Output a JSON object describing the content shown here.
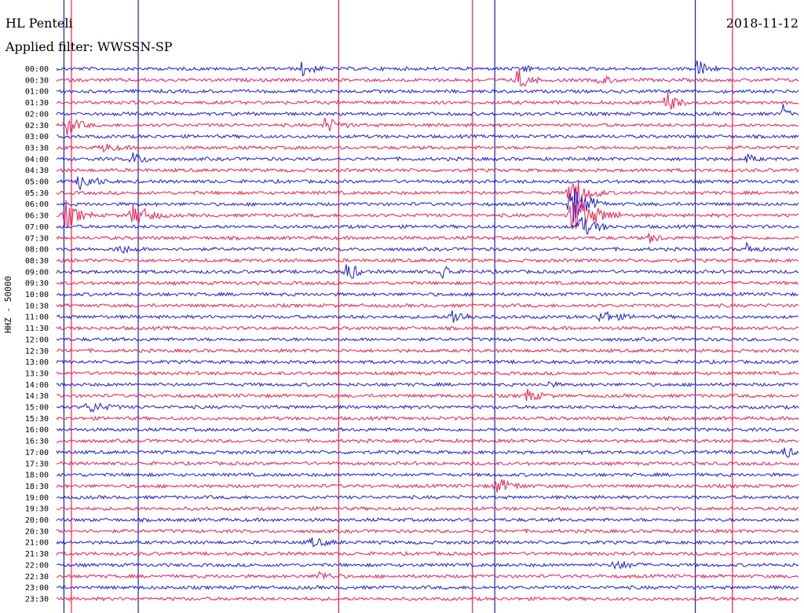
{
  "header": {
    "station": "HL Penteli",
    "filter": "Applied filter: WWSSN-SP",
    "date": "2018-11-12"
  },
  "channel_label": "HHZ - 50000",
  "colors": {
    "trace_a": "#1a1ae6",
    "trace_b": "#ff1a4d",
    "background": "#ffffff"
  },
  "chart_data": {
    "type": "line",
    "title": "HL Penteli",
    "rows": [
      "00:00",
      "00:30",
      "01:00",
      "01:30",
      "02:00",
      "02:30",
      "03:00",
      "03:30",
      "04:00",
      "04:30",
      "05:00",
      "05:30",
      "06:00",
      "06:30",
      "07:00",
      "07:30",
      "08:00",
      "08:30",
      "09:00",
      "09:30",
      "10:00",
      "10:30",
      "11:00",
      "11:30",
      "12:00",
      "12:30",
      "13:00",
      "13:30",
      "14:00",
      "14:30",
      "15:00",
      "15:30",
      "16:00",
      "16:30",
      "17:00",
      "17:30",
      "18:00",
      "18:30",
      "19:00",
      "19:30",
      "20:00",
      "20:30",
      "21:00",
      "21:30",
      "22:00",
      "22:30",
      "23:00",
      "23:30"
    ],
    "trace_colors": [
      "#1a1ae6",
      "#ff1a4d"
    ],
    "events": [
      {
        "row": 0,
        "at": 0.33,
        "len": 0.03,
        "amp": 10
      },
      {
        "row": 0,
        "at": 0.63,
        "len": 0.02,
        "amp": 5
      },
      {
        "row": 0,
        "at": 0.86,
        "len": 0.03,
        "amp": 14
      },
      {
        "row": 1,
        "at": 0.62,
        "len": 0.03,
        "amp": 14
      },
      {
        "row": 1,
        "at": 0.73,
        "len": 0.04,
        "amp": 5
      },
      {
        "row": 3,
        "at": 0.82,
        "len": 0.03,
        "amp": 14
      },
      {
        "row": 4,
        "at": 0.98,
        "len": 0.01,
        "amp": 14
      },
      {
        "row": 5,
        "at": 0.01,
        "len": 0.04,
        "amp": 12
      },
      {
        "row": 5,
        "at": 0.36,
        "len": 0.04,
        "amp": 10
      },
      {
        "row": 7,
        "at": 0.06,
        "len": 0.04,
        "amp": 5
      },
      {
        "row": 8,
        "at": 0.1,
        "len": 0.04,
        "amp": 7
      },
      {
        "row": 8,
        "at": 0.93,
        "len": 0.02,
        "amp": 6
      },
      {
        "row": 10,
        "at": 0.03,
        "len": 0.04,
        "amp": 12
      },
      {
        "row": 11,
        "at": 0.69,
        "len": 0.05,
        "amp": 22
      },
      {
        "row": 12,
        "at": 0.69,
        "len": 0.05,
        "amp": 26
      },
      {
        "row": 13,
        "at": 0.01,
        "len": 0.04,
        "amp": 18
      },
      {
        "row": 13,
        "at": 0.1,
        "len": 0.05,
        "amp": 14
      },
      {
        "row": 13,
        "at": 0.69,
        "len": 0.07,
        "amp": 26
      },
      {
        "row": 14,
        "at": 0.7,
        "len": 0.05,
        "amp": 14
      },
      {
        "row": 15,
        "at": 0.8,
        "len": 0.02,
        "amp": 9
      },
      {
        "row": 16,
        "at": 0.08,
        "len": 0.04,
        "amp": 6
      },
      {
        "row": 16,
        "at": 0.93,
        "len": 0.02,
        "amp": 8
      },
      {
        "row": 18,
        "at": 0.39,
        "len": 0.03,
        "amp": 14
      },
      {
        "row": 18,
        "at": 0.52,
        "len": 0.02,
        "amp": 12
      },
      {
        "row": 22,
        "at": 0.53,
        "len": 0.04,
        "amp": 10
      },
      {
        "row": 22,
        "at": 0.73,
        "len": 0.05,
        "amp": 8
      },
      {
        "row": 28,
        "at": 0.66,
        "len": 0.02,
        "amp": 5
      },
      {
        "row": 29,
        "at": 0.63,
        "len": 0.04,
        "amp": 8
      },
      {
        "row": 30,
        "at": 0.04,
        "len": 0.05,
        "amp": 7
      },
      {
        "row": 34,
        "at": 0.98,
        "len": 0.02,
        "amp": 10
      },
      {
        "row": 37,
        "at": 0.59,
        "len": 0.05,
        "amp": 9
      },
      {
        "row": 42,
        "at": 0.34,
        "len": 0.05,
        "amp": 5
      },
      {
        "row": 44,
        "at": 0.75,
        "len": 0.04,
        "amp": 7
      },
      {
        "row": 45,
        "at": 0.35,
        "len": 0.04,
        "amp": 6
      }
    ],
    "vertical_spikes": [
      {
        "at": 0.01,
        "color": "#1a1ae6"
      },
      {
        "at": 0.02,
        "color": "#ff1a4d"
      },
      {
        "at": 0.11,
        "color": "#1a1ae6"
      },
      {
        "at": 0.38,
        "color": "#ff1a4d"
      },
      {
        "at": 0.56,
        "color": "#ff1a4d"
      },
      {
        "at": 0.59,
        "color": "#1a1ae6"
      },
      {
        "at": 0.86,
        "color": "#1a1ae6"
      },
      {
        "at": 0.91,
        "color": "#ff1a4d"
      }
    ]
  }
}
